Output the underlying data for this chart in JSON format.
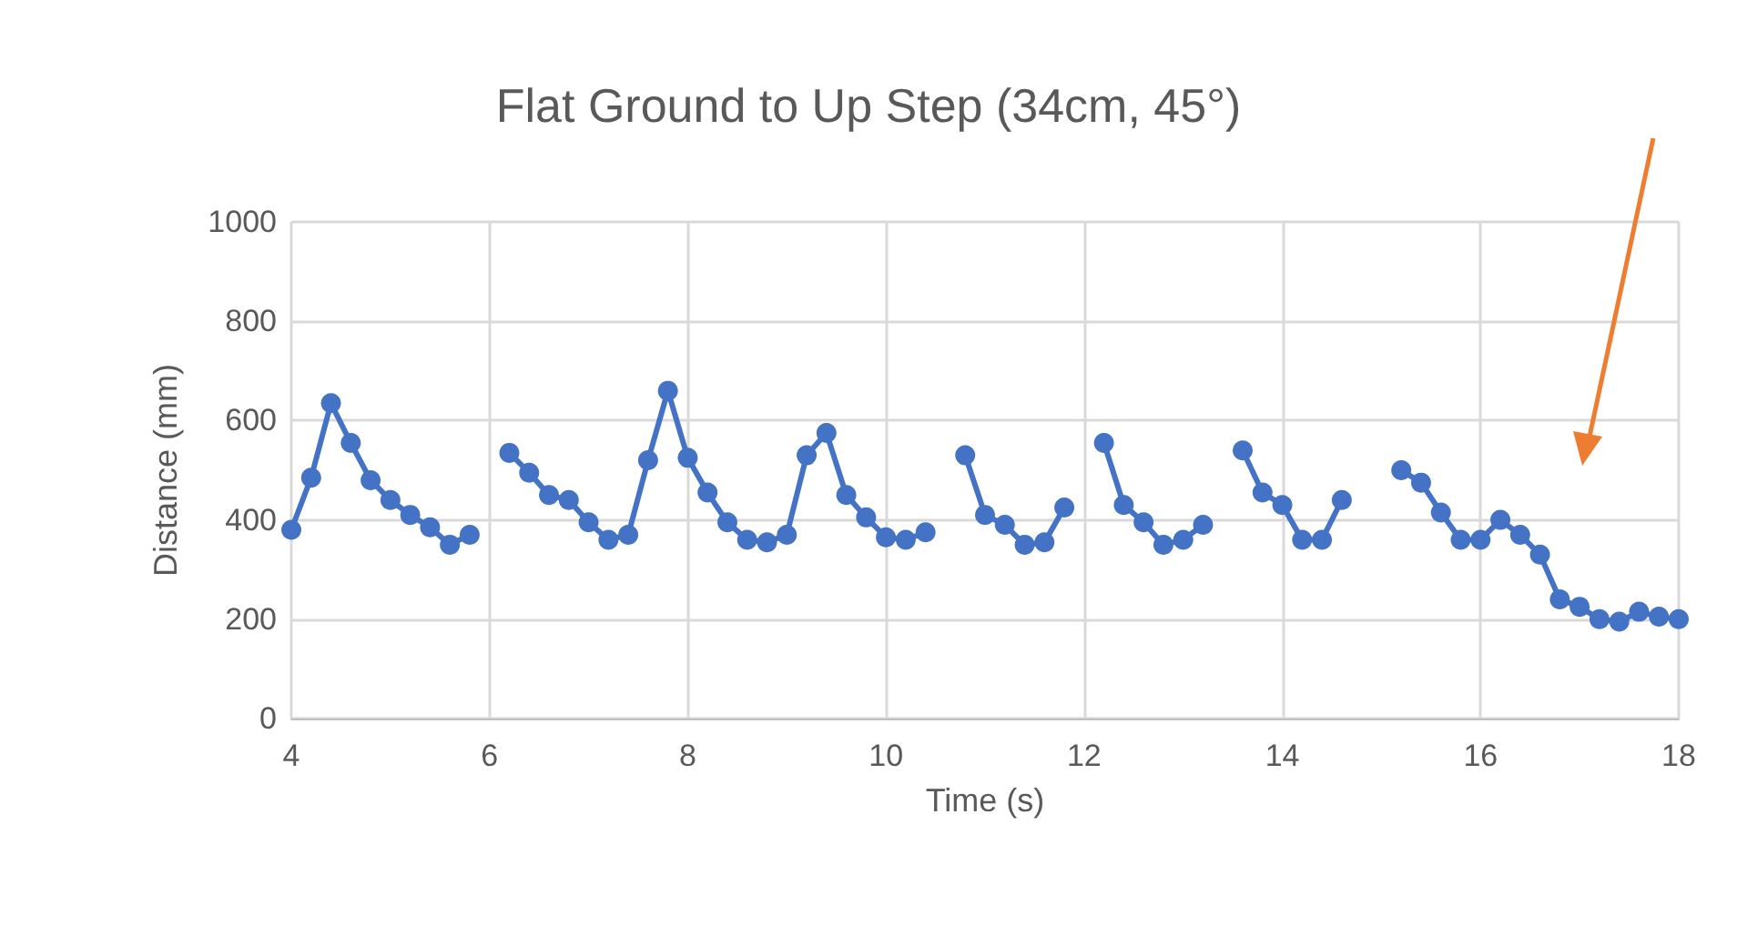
{
  "chart_data": {
    "type": "line",
    "title": "Flat Ground to Up Step (34cm, 45°)",
    "xlabel": "Time (s)",
    "ylabel": "Distance (mm)",
    "x": [
      4.0,
      4.2,
      4.4,
      4.6,
      4.8,
      5.0,
      5.2,
      5.4,
      5.6,
      5.8,
      6.0,
      6.2,
      6.4,
      6.6,
      6.8,
      7.0,
      7.2,
      7.4,
      7.6,
      7.8,
      8.0,
      8.2,
      8.4,
      8.6,
      8.8,
      9.0,
      9.2,
      9.4,
      9.6,
      9.8,
      10.0,
      10.2,
      10.4,
      10.6,
      10.8,
      11.0,
      11.2,
      11.4,
      11.6,
      11.8,
      12.0,
      12.2,
      12.4,
      12.6,
      12.8,
      13.0,
      13.2,
      13.4,
      13.6,
      13.8,
      14.0,
      14.2,
      14.4,
      14.6,
      14.8,
      15.0,
      15.2,
      15.4,
      15.6,
      15.8,
      16.0,
      16.2,
      16.4,
      16.6,
      16.8,
      17.0,
      17.2,
      17.4,
      17.6,
      17.8,
      18.0
    ],
    "series": [
      {
        "color": "#4472c4",
        "values": [
          380,
          485,
          635,
          555,
          480,
          440,
          410,
          385,
          350,
          370,
          null,
          535,
          495,
          450,
          440,
          395,
          360,
          370,
          520,
          660,
          525,
          455,
          395,
          360,
          355,
          370,
          530,
          575,
          450,
          405,
          365,
          360,
          375,
          null,
          530,
          410,
          390,
          350,
          355,
          425,
          null,
          555,
          430,
          395,
          350,
          360,
          390,
          null,
          540,
          455,
          430,
          360,
          360,
          440,
          null,
          null,
          500,
          475,
          415,
          360,
          360,
          400,
          370,
          330,
          240,
          225,
          200,
          195,
          215,
          205,
          200
        ]
      }
    ],
    "xlim": [
      4,
      18
    ],
    "xticks": [
      4,
      6,
      8,
      10,
      12,
      14,
      16,
      18
    ],
    "ylim": [
      0,
      1000
    ],
    "yticks": [
      0,
      200,
      400,
      600,
      800,
      1000
    ],
    "grid": true,
    "marker": "circle",
    "line_style": "solid"
  }
}
